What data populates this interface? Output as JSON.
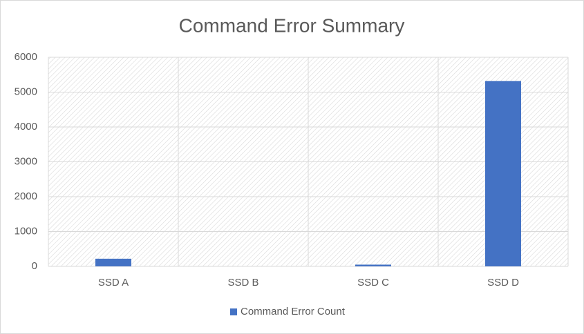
{
  "chart_data": {
    "type": "bar",
    "title": "Command Error Summary",
    "categories": [
      "SSD A",
      "SSD B",
      "SSD C",
      "SSD D"
    ],
    "series": [
      {
        "name": "Command Error Count",
        "color": "#4472c4",
        "values": [
          220,
          0,
          50,
          5320
        ]
      }
    ],
    "ylim": [
      0,
      6000
    ],
    "yticks": [
      0,
      1000,
      2000,
      3000,
      4000,
      5000,
      6000
    ],
    "grid": true,
    "legend": "bottom"
  }
}
